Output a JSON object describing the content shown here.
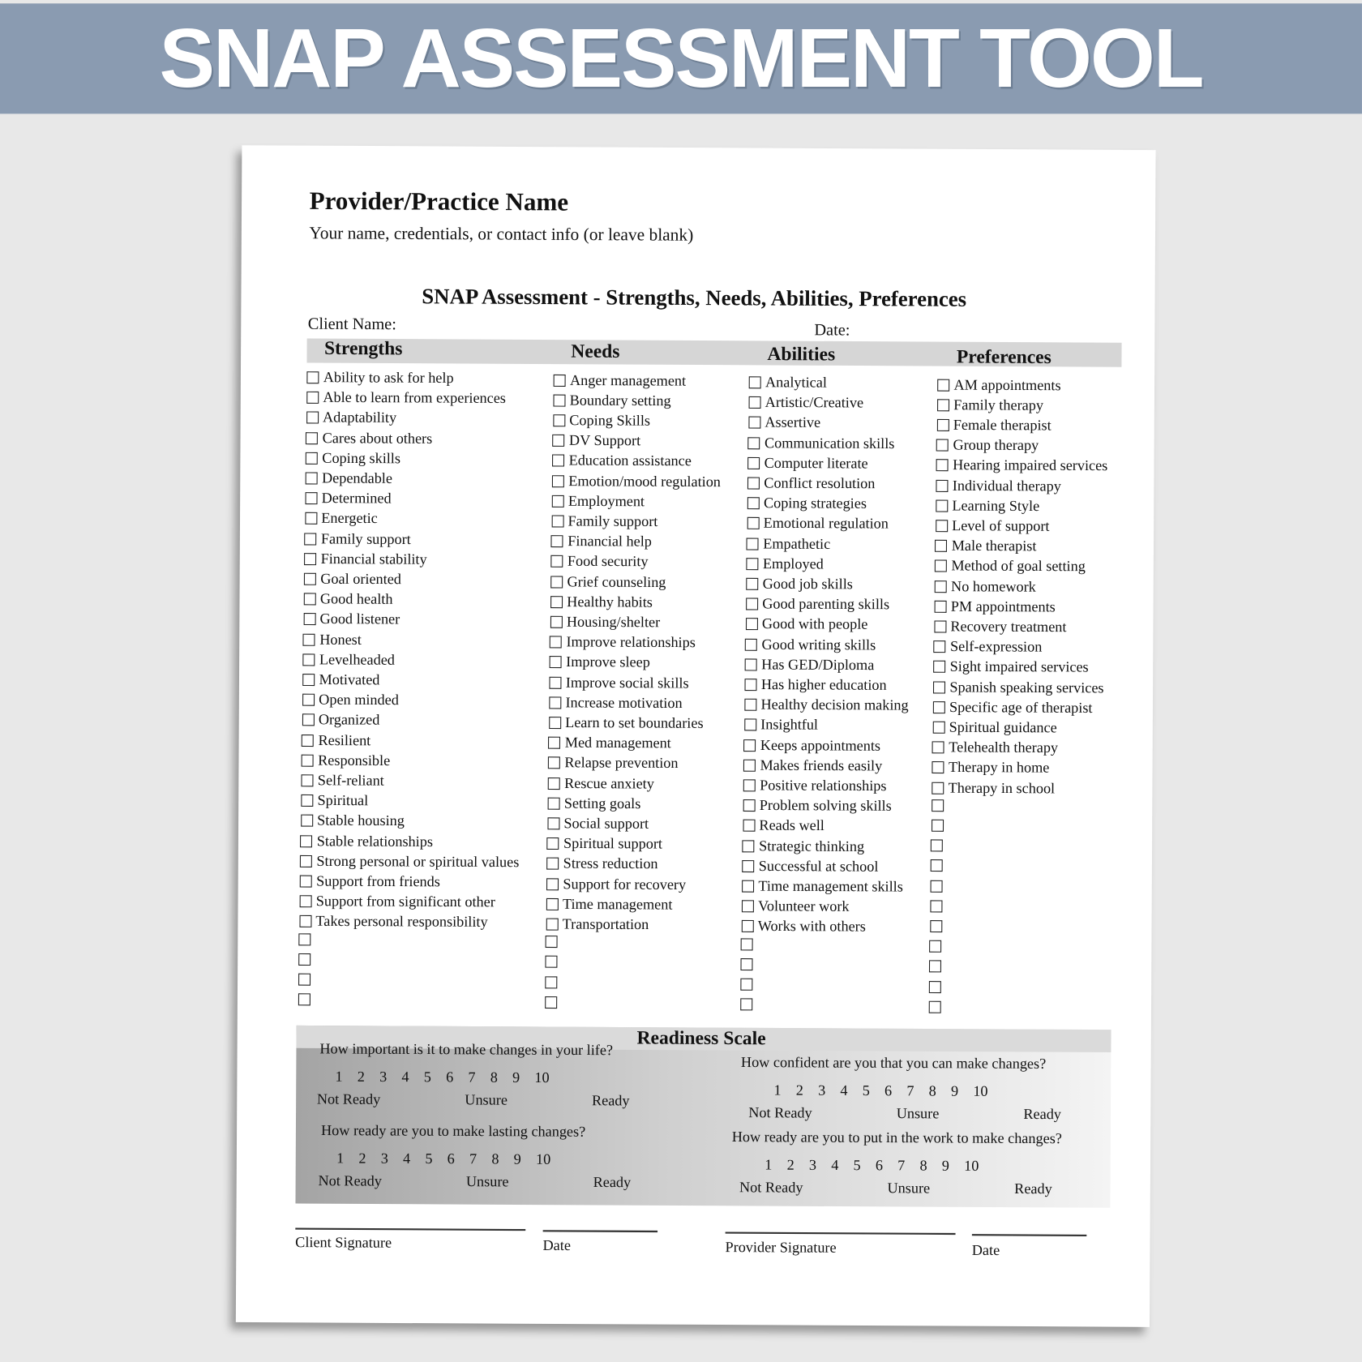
{
  "banner": {
    "title": "SNAP ASSESSMENT TOOL"
  },
  "provider": {
    "name": "Provider/Practice Name",
    "info": "Your name, credentials, or contact info (or leave blank)"
  },
  "form": {
    "title": "SNAP Assessment - Strengths, Needs, Abilities, Preferences",
    "client_label": "Client Name:",
    "date_label": "Date:"
  },
  "columns": [
    {
      "heading": "Strengths",
      "items": [
        "Ability to ask for help",
        "Able to learn from experiences",
        "Adaptability",
        "Cares about others",
        "Coping skills",
        "Dependable",
        "Determined",
        "Energetic",
        "Family support",
        "Financial stability",
        "Goal oriented",
        "Good health",
        "Good listener",
        "Honest",
        "Levelheaded",
        "Motivated",
        "Open minded",
        "Organized",
        "Resilient",
        "Responsible",
        "Self-reliant",
        "Spiritual",
        "Stable housing",
        "Stable relationships",
        "Strong personal or spiritual values",
        "Support from friends",
        "Support from significant other",
        "Takes personal responsibility",
        "",
        "",
        "",
        ""
      ]
    },
    {
      "heading": "Needs",
      "items": [
        "Anger management",
        "Boundary setting",
        "Coping Skills",
        "DV Support",
        "Education assistance",
        "Emotion/mood regulation",
        "Employment",
        "Family support",
        "Financial help",
        "Food security",
        "Grief counseling",
        "Healthy habits",
        "Housing/shelter",
        "Improve relationships",
        "Improve sleep",
        "Improve social skills",
        "Increase motivation",
        "Learn to set boundaries",
        "Med management",
        "Relapse prevention",
        "Rescue anxiety",
        "Setting goals",
        "Social support",
        "Spiritual support",
        "Stress reduction",
        "Support for recovery",
        "Time management",
        "Transportation",
        "",
        "",
        "",
        ""
      ]
    },
    {
      "heading": "Abilities",
      "items": [
        "Analytical",
        "Artistic/Creative",
        "Assertive",
        "Communication skills",
        "Computer literate",
        "Conflict resolution",
        "Coping strategies",
        "Emotional regulation",
        "Empathetic",
        "Employed",
        "Good job skills",
        "Good parenting skills",
        "Good with people",
        "Good writing skills",
        "Has GED/Diploma",
        "Has higher education",
        "Healthy decision making",
        "Insightful",
        "Keeps appointments",
        "Makes friends easily",
        "Positive relationships",
        "Problem solving skills",
        "Reads well",
        "Strategic thinking",
        "Successful at school",
        "Time management skills",
        "Volunteer work",
        "Works with others",
        "",
        "",
        "",
        ""
      ]
    },
    {
      "heading": "Preferences",
      "items": [
        "AM appointments",
        "Family therapy",
        "Female therapist",
        "Group therapy",
        "Hearing impaired services",
        "Individual therapy",
        "Learning Style",
        "Level of support",
        "Male therapist",
        "Method of goal setting",
        "No homework",
        "PM appointments",
        "Recovery treatment",
        "Self-expression",
        "Sight impaired services",
        "Spanish speaking services",
        "Specific age of therapist",
        "Spiritual guidance",
        "Telehealth therapy",
        "Therapy in home",
        "Therapy in school",
        "",
        "",
        "",
        "",
        "",
        "",
        "",
        "",
        "",
        "",
        ""
      ]
    }
  ],
  "readiness": {
    "title": "Readiness Scale",
    "scale": [
      "1",
      "2",
      "3",
      "4",
      "5",
      "6",
      "7",
      "8",
      "9",
      "10"
    ],
    "labels": [
      "Not Ready",
      "Unsure",
      "Ready"
    ],
    "questions": [
      "How important is it to make changes in your life?",
      "How confident are you that you can make changes?",
      "How ready are you to make lasting changes?",
      "How ready are you to put in the work to make  changes?"
    ]
  },
  "signatures": [
    "Client Signature",
    "Date",
    "Provider Signature",
    "Date"
  ]
}
